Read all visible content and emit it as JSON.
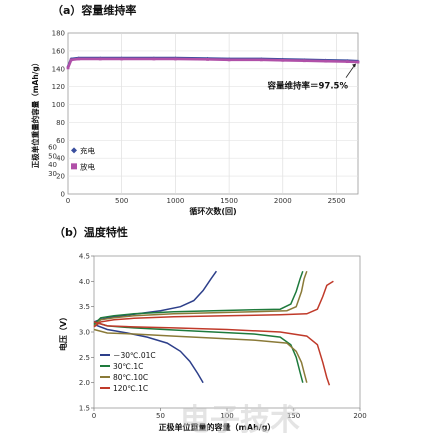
{
  "watermark": "电子技术",
  "chart_data": [
    {
      "type": "scatter",
      "title": "（a）容量维持率",
      "xlabel": "循环次数(回)",
      "ylabel": "正极单位重量的容量（mAh/g）",
      "xlim": [
        0,
        2700
      ],
      "ylim": [
        0,
        180
      ],
      "x_ticks": [
        "0",
        "500",
        "1000",
        "1500",
        "2000",
        "2500"
      ],
      "y_ticks": [
        "0",
        "20",
        "40",
        "60",
        "80",
        "100",
        "120",
        "140",
        "160",
        "180"
      ],
      "y_ticks_overlap": [
        "30",
        "40",
        "50",
        "60"
      ],
      "grid": true,
      "legend_position": "left",
      "annotation": "容量维持率＝97.5%",
      "annotation_point": [
        2700,
        148
      ],
      "series": [
        {
          "name": "充电",
          "marker": "diamond",
          "color": "#3a4f9e",
          "x": [
            0,
            30,
            100,
            300,
            500,
            800,
            1000,
            1300,
            1500,
            1800,
            2000,
            2200,
            2400,
            2600,
            2700
          ],
          "values": [
            142,
            151,
            152,
            152,
            152,
            152,
            152,
            151.5,
            151,
            151,
            150.5,
            150,
            149.5,
            149,
            148.5
          ]
        },
        {
          "name": "放电",
          "marker": "square",
          "color": "#b050a8",
          "x": [
            0,
            30,
            100,
            300,
            500,
            800,
            1000,
            1300,
            1500,
            1800,
            2000,
            2200,
            2400,
            2600,
            2700
          ],
          "values": [
            141,
            150,
            151,
            151,
            151,
            151,
            151,
            150.5,
            150,
            150,
            149.5,
            149,
            148.5,
            148,
            147.5
          ]
        }
      ]
    },
    {
      "type": "line",
      "title": "（b）温度特性",
      "xlabel": "正极单位重量的容量（mAh/g）",
      "ylabel": "电压（V）",
      "xlim": [
        0,
        200
      ],
      "ylim": [
        1.5,
        4.5
      ],
      "x_ticks": [
        "0",
        "50",
        "100",
        "150",
        "200"
      ],
      "y_ticks": [
        "1.5",
        "2.0",
        "2.5",
        "3.0",
        "3.5",
        "4.0",
        "4.5"
      ],
      "legend_position": "bottom-left",
      "series": [
        {
          "name": "－30℃.01C",
          "color": "#2d3f8a",
          "charge": [
            [
              0,
              3.2
            ],
            [
              5,
              3.25
            ],
            [
              15,
              3.3
            ],
            [
              30,
              3.35
            ],
            [
              50,
              3.42
            ],
            [
              65,
              3.5
            ],
            [
              75,
              3.62
            ],
            [
              82,
              3.82
            ],
            [
              88,
              4.05
            ],
            [
              92,
              4.2
            ]
          ],
          "discharge": [
            [
              0,
              3.15
            ],
            [
              10,
              3.05
            ],
            [
              25,
              2.98
            ],
            [
              40,
              2.9
            ],
            [
              55,
              2.78
            ],
            [
              65,
              2.62
            ],
            [
              72,
              2.42
            ],
            [
              78,
              2.18
            ],
            [
              82,
              2.0
            ]
          ]
        },
        {
          "name": "30℃.1C",
          "color": "#1e7a3c",
          "charge": [
            [
              0,
              3.15
            ],
            [
              5,
              3.28
            ],
            [
              15,
              3.32
            ],
            [
              30,
              3.36
            ],
            [
              60,
              3.4
            ],
            [
              90,
              3.42
            ],
            [
              120,
              3.44
            ],
            [
              140,
              3.45
            ],
            [
              148,
              3.55
            ],
            [
              152,
              3.8
            ],
            [
              155,
              4.05
            ],
            [
              157,
              4.2
            ]
          ],
          "discharge": [
            [
              0,
              3.2
            ],
            [
              10,
              3.12
            ],
            [
              30,
              3.08
            ],
            [
              60,
              3.04
            ],
            [
              90,
              3.0
            ],
            [
              120,
              2.96
            ],
            [
              140,
              2.9
            ],
            [
              148,
              2.75
            ],
            [
              152,
              2.5
            ],
            [
              155,
              2.2
            ],
            [
              157,
              2.0
            ]
          ]
        },
        {
          "name": "80℃.10C",
          "color": "#8a7a38",
          "charge": [
            [
              0,
              3.12
            ],
            [
              5,
              3.24
            ],
            [
              15,
              3.28
            ],
            [
              30,
              3.32
            ],
            [
              60,
              3.36
            ],
            [
              90,
              3.38
            ],
            [
              120,
              3.4
            ],
            [
              145,
              3.42
            ],
            [
              152,
              3.5
            ],
            [
              156,
              3.8
            ],
            [
              158,
              4.05
            ],
            [
              160,
              4.2
            ]
          ],
          "discharge": [
            [
              0,
              3.05
            ],
            [
              10,
              2.98
            ],
            [
              30,
              2.96
            ],
            [
              60,
              2.92
            ],
            [
              90,
              2.88
            ],
            [
              120,
              2.84
            ],
            [
              145,
              2.78
            ],
            [
              152,
              2.62
            ],
            [
              156,
              2.4
            ],
            [
              158,
              2.2
            ],
            [
              160,
              2.0
            ]
          ]
        },
        {
          "name": "120℃.1C",
          "color": "#c03a2a",
          "charge": [
            [
              0,
              3.1
            ],
            [
              5,
              3.2
            ],
            [
              15,
              3.24
            ],
            [
              30,
              3.27
            ],
            [
              60,
              3.3
            ],
            [
              100,
              3.32
            ],
            [
              140,
              3.34
            ],
            [
              160,
              3.36
            ],
            [
              168,
              3.45
            ],
            [
              172,
              3.7
            ],
            [
              175,
              3.92
            ],
            [
              180,
              4.0
            ]
          ],
          "discharge": [
            [
              0,
              3.2
            ],
            [
              10,
              3.12
            ],
            [
              30,
              3.1
            ],
            [
              60,
              3.08
            ],
            [
              100,
              3.05
            ],
            [
              140,
              3.0
            ],
            [
              160,
              2.92
            ],
            [
              168,
              2.75
            ],
            [
              172,
              2.4
            ],
            [
              175,
              2.1
            ],
            [
              177,
              1.95
            ]
          ]
        }
      ]
    }
  ]
}
